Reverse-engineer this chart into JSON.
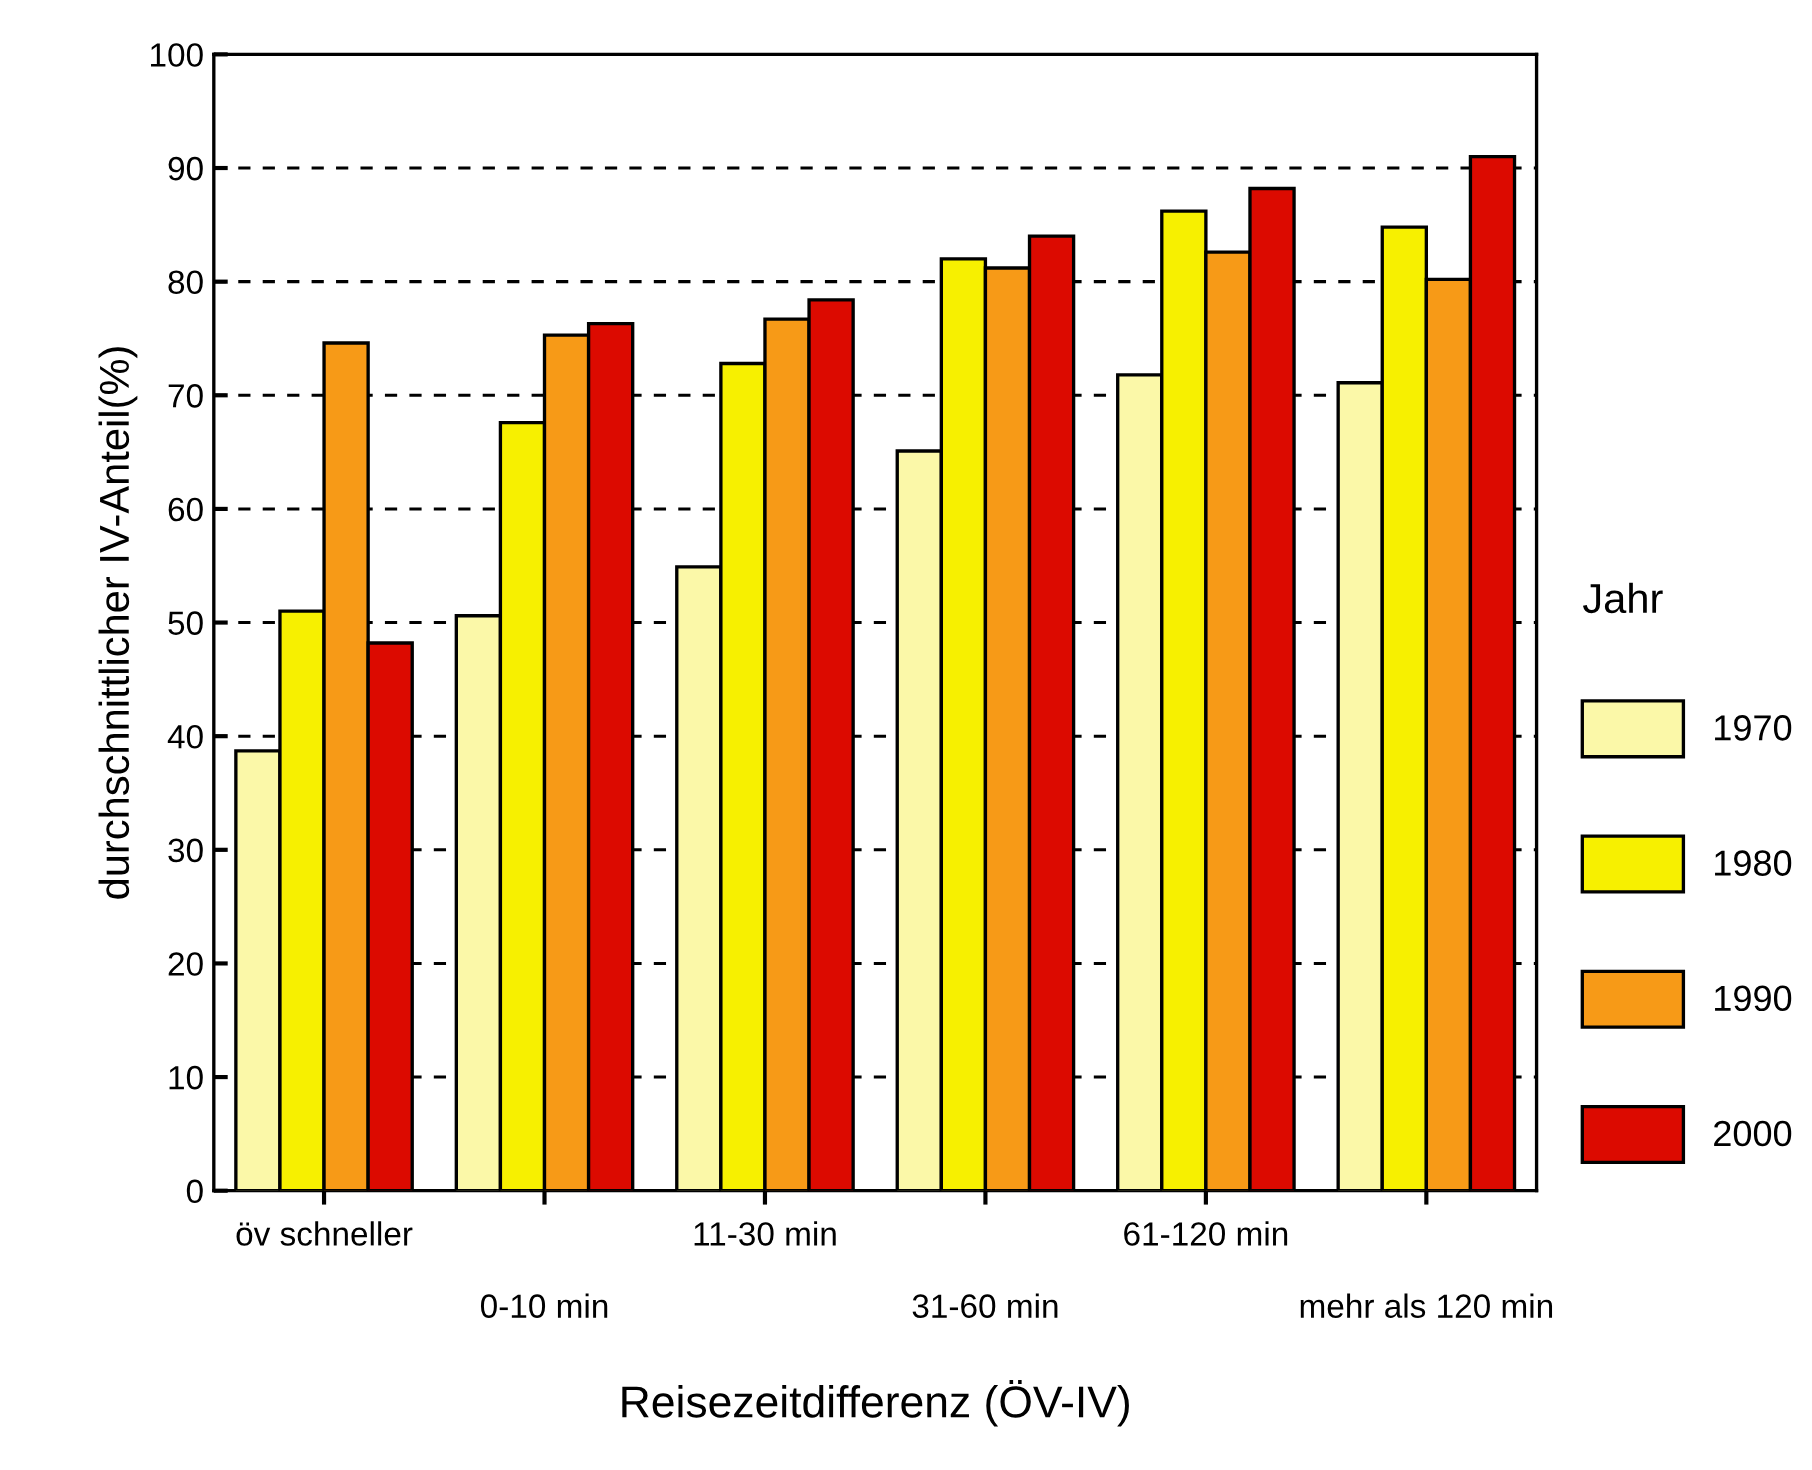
{
  "chart_data": {
    "type": "bar",
    "xlabel": "Reisezeitdifferenz (ÖV-IV)",
    "ylabel": "durchschnittlicher IV-Anteil(%)",
    "legend_title": "Jahr",
    "categories": [
      "öv schneller",
      "0-10 min",
      "11-30 min",
      "31-60 min",
      "61-120 min",
      "mehr als 120 min"
    ],
    "series": [
      {
        "name": "1970",
        "color": "#fbf8a8",
        "values": [
          38.7,
          50.6,
          54.9,
          65.1,
          71.8,
          71.1
        ]
      },
      {
        "name": "1980",
        "color": "#f7f000",
        "values": [
          51.0,
          67.6,
          72.8,
          82.0,
          86.2,
          84.8
        ]
      },
      {
        "name": "1990",
        "color": "#f79a17",
        "values": [
          74.6,
          75.3,
          76.7,
          81.2,
          82.6,
          80.2
        ]
      },
      {
        "name": "2000",
        "color": "#dc0a00",
        "values": [
          48.2,
          76.3,
          78.4,
          84.0,
          88.2,
          91.0
        ]
      }
    ],
    "ylim": [
      0,
      100
    ],
    "yticks": [
      0,
      10,
      20,
      30,
      40,
      50,
      60,
      70,
      80,
      90,
      100
    ],
    "grid": "y",
    "legend": "right"
  }
}
